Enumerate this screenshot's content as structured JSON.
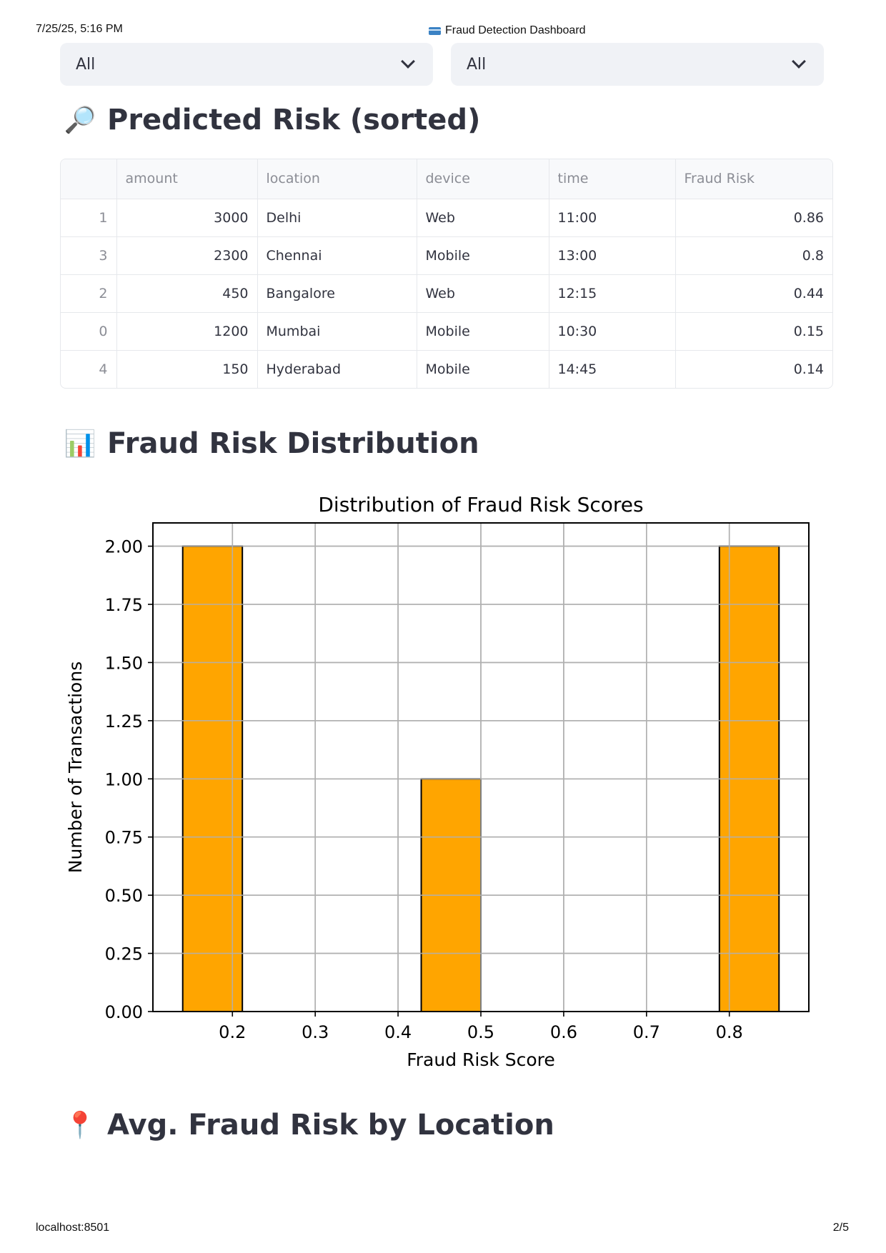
{
  "print": {
    "date": "7/25/25, 5:16 PM",
    "page_title": "Fraud Detection Dashboard",
    "url": "localhost:8501",
    "page_num": "2/5"
  },
  "filters": [
    {
      "selected": "All"
    },
    {
      "selected": "All"
    }
  ],
  "sections": {
    "predicted_risk": {
      "emoji": "🔎",
      "title": "Predicted Risk (sorted)"
    },
    "distribution": {
      "emoji": "📊",
      "title": "Fraud Risk Distribution"
    },
    "by_location": {
      "emoji": "📍",
      "title": "Avg. Fraud Risk by Location"
    }
  },
  "table": {
    "columns": [
      "",
      "amount",
      "location",
      "device",
      "time",
      "Fraud Risk"
    ],
    "rows": [
      {
        "index": "1",
        "amount": "3000",
        "location": "Delhi",
        "device": "Web",
        "time": "11:00",
        "risk": "0.86"
      },
      {
        "index": "3",
        "amount": "2300",
        "location": "Chennai",
        "device": "Mobile",
        "time": "13:00",
        "risk": "0.8"
      },
      {
        "index": "2",
        "amount": "450",
        "location": "Bangalore",
        "device": "Web",
        "time": "12:15",
        "risk": "0.44"
      },
      {
        "index": "0",
        "amount": "1200",
        "location": "Mumbai",
        "device": "Mobile",
        "time": "10:30",
        "risk": "0.15"
      },
      {
        "index": "4",
        "amount": "150",
        "location": "Hyderabad",
        "device": "Mobile",
        "time": "14:45",
        "risk": "0.14"
      }
    ]
  },
  "chart_data": {
    "type": "bar",
    "title": "Distribution of Fraud Risk Scores",
    "xlabel": "Fraud Risk Score",
    "ylabel": "Number of Transactions",
    "bins": [
      {
        "x0": 0.14,
        "x1": 0.212,
        "count": 2
      },
      {
        "x0": 0.212,
        "x1": 0.284,
        "count": 0
      },
      {
        "x0": 0.284,
        "x1": 0.356,
        "count": 0
      },
      {
        "x0": 0.356,
        "x1": 0.428,
        "count": 0
      },
      {
        "x0": 0.428,
        "x1": 0.5,
        "count": 1
      },
      {
        "x0": 0.5,
        "x1": 0.572,
        "count": 0
      },
      {
        "x0": 0.572,
        "x1": 0.644,
        "count": 0
      },
      {
        "x0": 0.644,
        "x1": 0.716,
        "count": 0
      },
      {
        "x0": 0.716,
        "x1": 0.788,
        "count": 0
      },
      {
        "x0": 0.788,
        "x1": 0.86,
        "count": 2
      }
    ],
    "xlim": [
      0.104,
      0.896
    ],
    "ylim": [
      0,
      2.1
    ],
    "xticks": [
      0.2,
      0.3,
      0.4,
      0.5,
      0.6,
      0.7,
      0.8
    ],
    "xtick_labels": [
      "0.2",
      "0.3",
      "0.4",
      "0.5",
      "0.6",
      "0.7",
      "0.8"
    ],
    "yticks": [
      0,
      0.25,
      0.5,
      0.75,
      1.0,
      1.25,
      1.5,
      1.75,
      2.0
    ],
    "ytick_labels": [
      "0.00",
      "0.25",
      "0.50",
      "0.75",
      "1.00",
      "1.25",
      "1.50",
      "1.75",
      "2.00"
    ],
    "grid": true,
    "bar_color": "#ffa500",
    "edge_color": "#000000"
  }
}
